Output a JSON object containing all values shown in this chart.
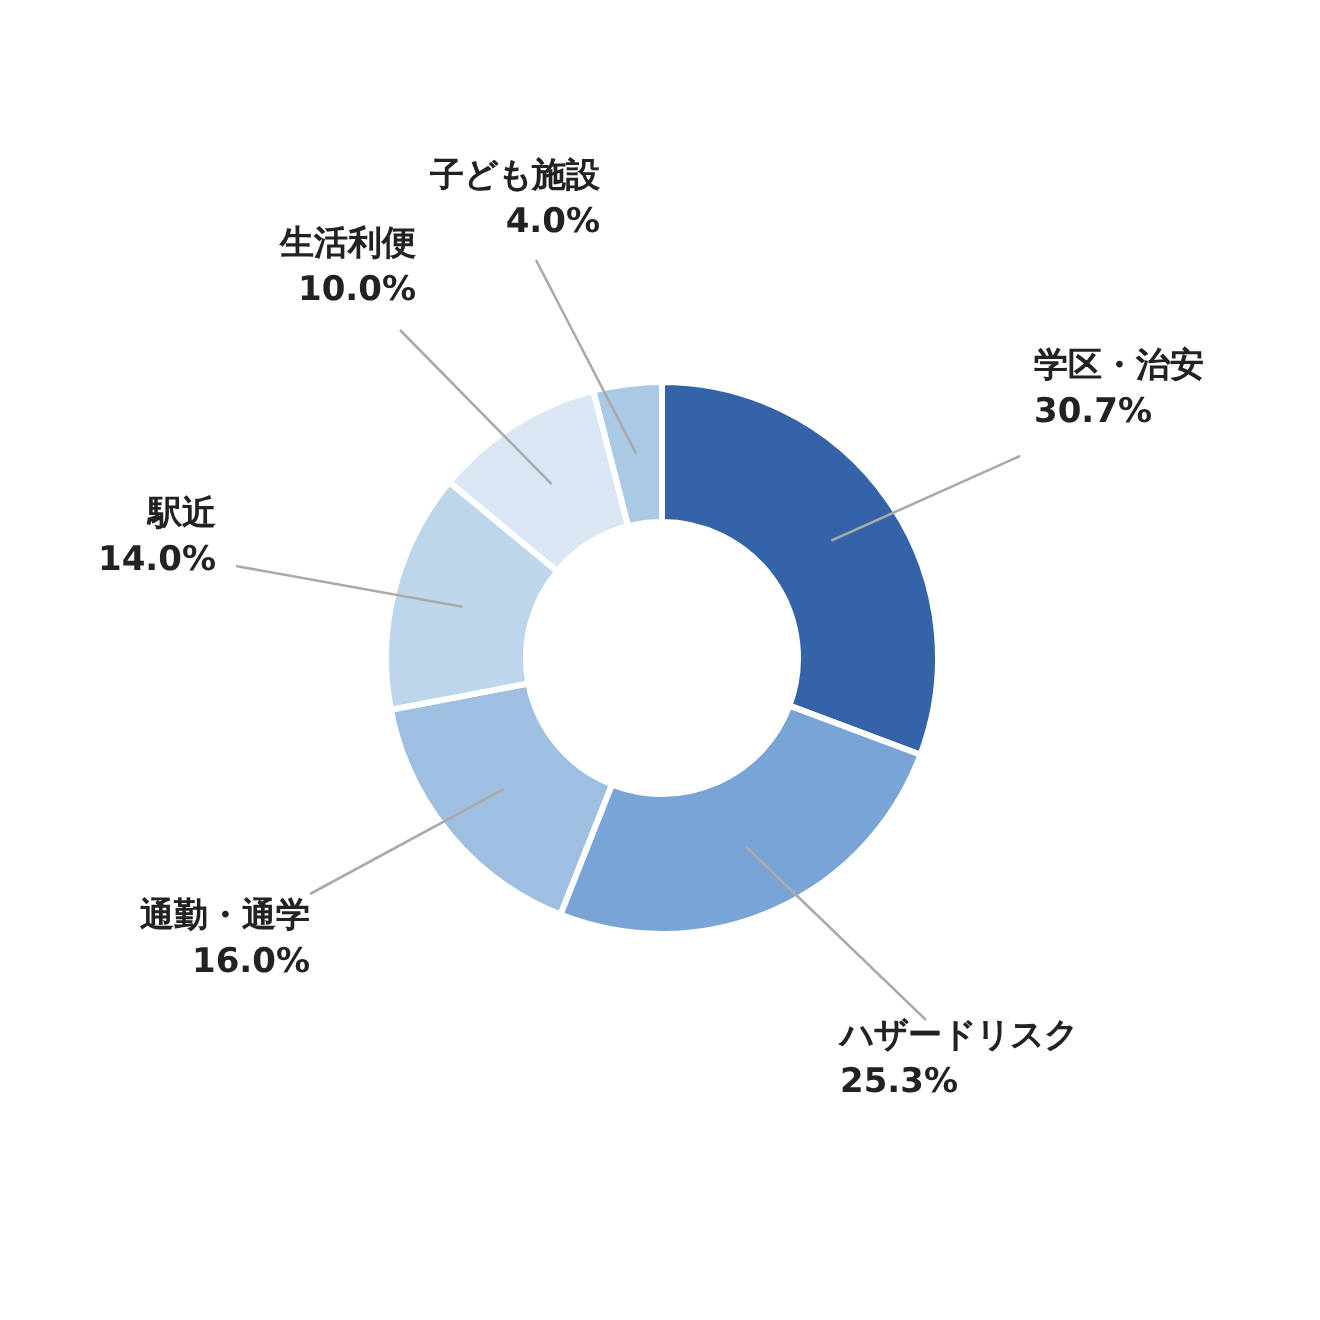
{
  "chart_data": {
    "type": "donut",
    "categories": [
      "学区・治安",
      "ハザードリスク",
      "通勤・通学",
      "駅近",
      "生活利便",
      "子ども施設"
    ],
    "values": [
      30.7,
      25.3,
      16.0,
      14.0,
      10.0,
      4.0
    ],
    "value_labels": [
      "30.7%",
      "25.3%",
      "16.0%",
      "14.0%",
      "10.0%",
      "4.0%"
    ],
    "colors": [
      "#3463a8",
      "#78a5d5",
      "#9fbfe1",
      "#bed6ec",
      "#d9e7f4",
      "#a9c9e4"
    ],
    "legend": false
  }
}
